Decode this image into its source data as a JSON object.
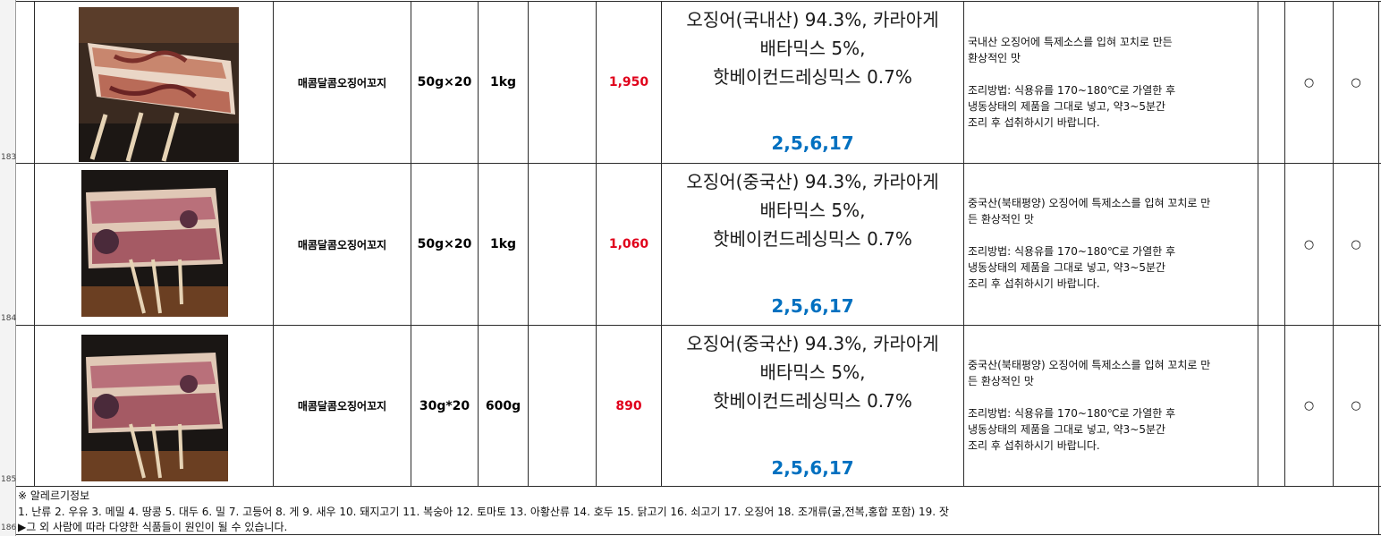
{
  "row_numbers": [
    "183",
    "184",
    "185",
    "186"
  ],
  "rows": [
    {
      "name": "매콤달콤오징어꼬지",
      "unit": "50g×20",
      "weight": "1kg",
      "price": "1,950",
      "ingredients": [
        "오징어(국내산) 94.3%, 카라아게",
        "배타믹스 5%,",
        "핫베이컨드레싱믹스 0.7%"
      ],
      "allergen_codes": "2,5,6,17",
      "description": "국내산 오징어에 특제소스를 입혀 꼬치로 만든\n환상적인 맛\n\n조리방법: 식용유를 170~180℃로 가열한 후\n냉동상태의 제품을 그대로 넣고, 약3~5분간\n조리 후 섭취하시기 바랍니다.",
      "mark1": "○",
      "mark2": "○"
    },
    {
      "name": "매콤달콤오징어꼬지",
      "unit": "50g×20",
      "weight": "1kg",
      "price": "1,060",
      "ingredients": [
        "오징어(중국산) 94.3%, 카라아게",
        "배타믹스 5%,",
        "핫베이컨드레싱믹스 0.7%"
      ],
      "allergen_codes": "2,5,6,17",
      "description": "중국산(북태평양) 오징어에 특제소스를 입혀 꼬치로 만\n든 환상적인 맛\n\n조리방법: 식용유를 170~180℃로 가열한 후\n냉동상태의 제품을 그대로 넣고, 약3~5분간\n조리 후 섭취하시기 바랍니다.",
      "mark1": "○",
      "mark2": "○"
    },
    {
      "name": "매콤달콤오징어꼬지",
      "unit": "30g*20",
      "weight": "600g",
      "price": "890",
      "ingredients": [
        "오징어(중국산) 94.3%, 카라아게",
        "배타믹스 5%,",
        "핫베이컨드레싱믹스 0.7%"
      ],
      "allergen_codes": "2,5,6,17",
      "description": "중국산(북태평양) 오징어에 특제소스를 입혀 꼬치로 만\n든 환상적인 맛\n\n조리방법: 식용유를 170~180℃로 가열한 후\n냉동상태의 제품을 그대로 넣고, 약3~5분간\n조리 후 섭취하시기 바랍니다.",
      "mark1": "○",
      "mark2": "○"
    }
  ],
  "footer": {
    "allergy_title": "※ 알레르기정보",
    "allergy_list": "1. 난류  2. 우유  3. 메밀  4. 땅콩  5. 대두  6. 밀  7. 고등어  8. 게  9. 새우  10. 돼지고기  11. 복숭아  12. 토마토  13. 아황산류  14. 호두  15. 닭고기  16. 쇠고기  17. 오징어  18. 조개류(굴,전복,홍합 포함)  19. 잣",
    "note": "▶그 외 사람에 따라 다양한 식품들이 원인이 될 수 있습니다."
  },
  "colors": {
    "price": "#e0001b",
    "allergen_code": "#0070c0",
    "grid": "#2b2b2b"
  },
  "icons": [
    "grilled-squid-skewer-photo"
  ]
}
